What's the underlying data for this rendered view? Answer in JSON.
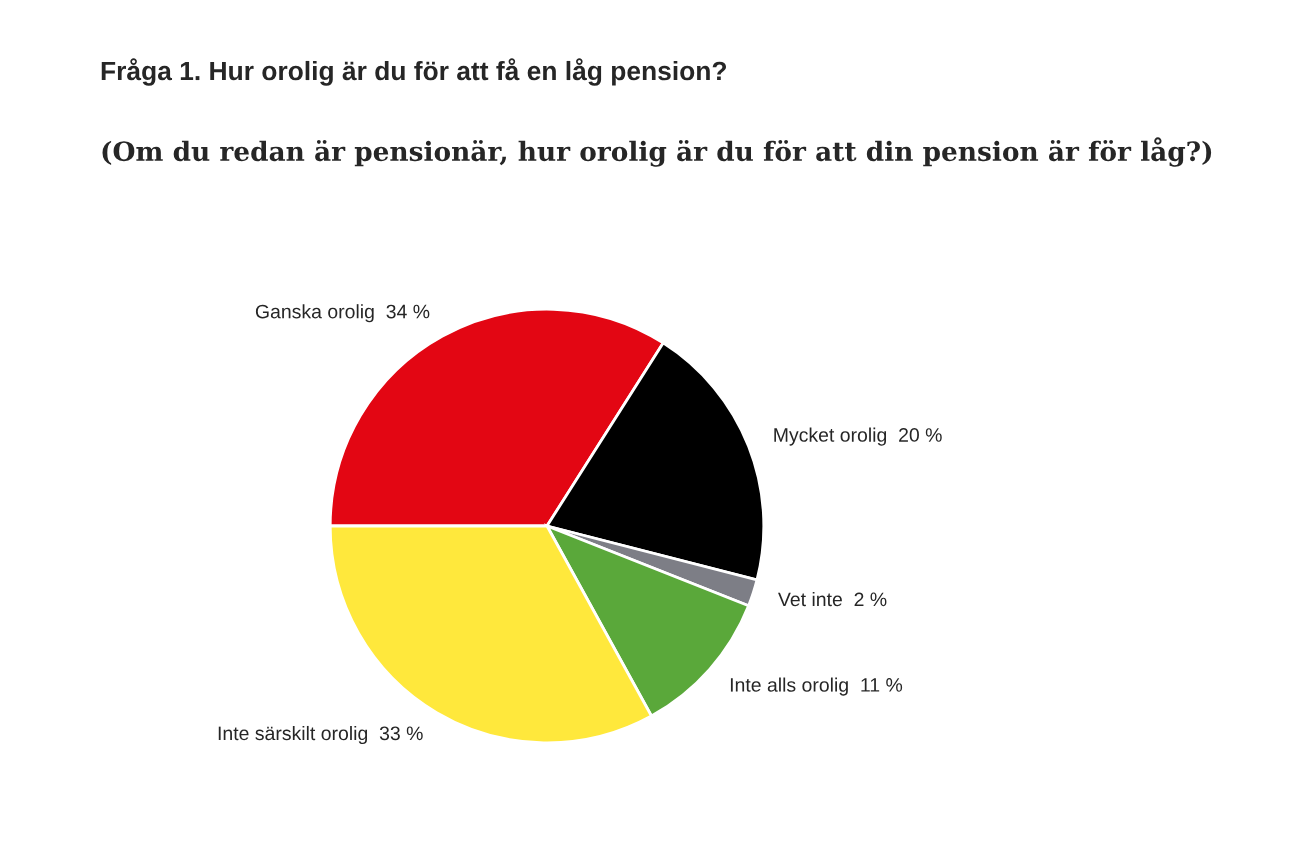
{
  "chart_data": {
    "type": "pie",
    "title": "Fråga 1. Hur orolig är du för att få en låg pension?",
    "subtitle": "(Om du redan är pensionär, hur orolig är du för att din pension är för låg?)",
    "categories": [
      "Ganska orolig",
      "Mycket orolig",
      "Vet inte",
      "Inte alls orolig",
      "Inte särskilt orolig"
    ],
    "values": [
      34,
      20,
      2,
      11,
      33
    ],
    "value_labels": [
      "34 %",
      "20 %",
      "2 %",
      "11 %",
      "33 %"
    ],
    "colors": [
      "#e30613",
      "#000000",
      "#7d7e86",
      "#5aa83a",
      "#ffe83c"
    ],
    "legend": false
  }
}
